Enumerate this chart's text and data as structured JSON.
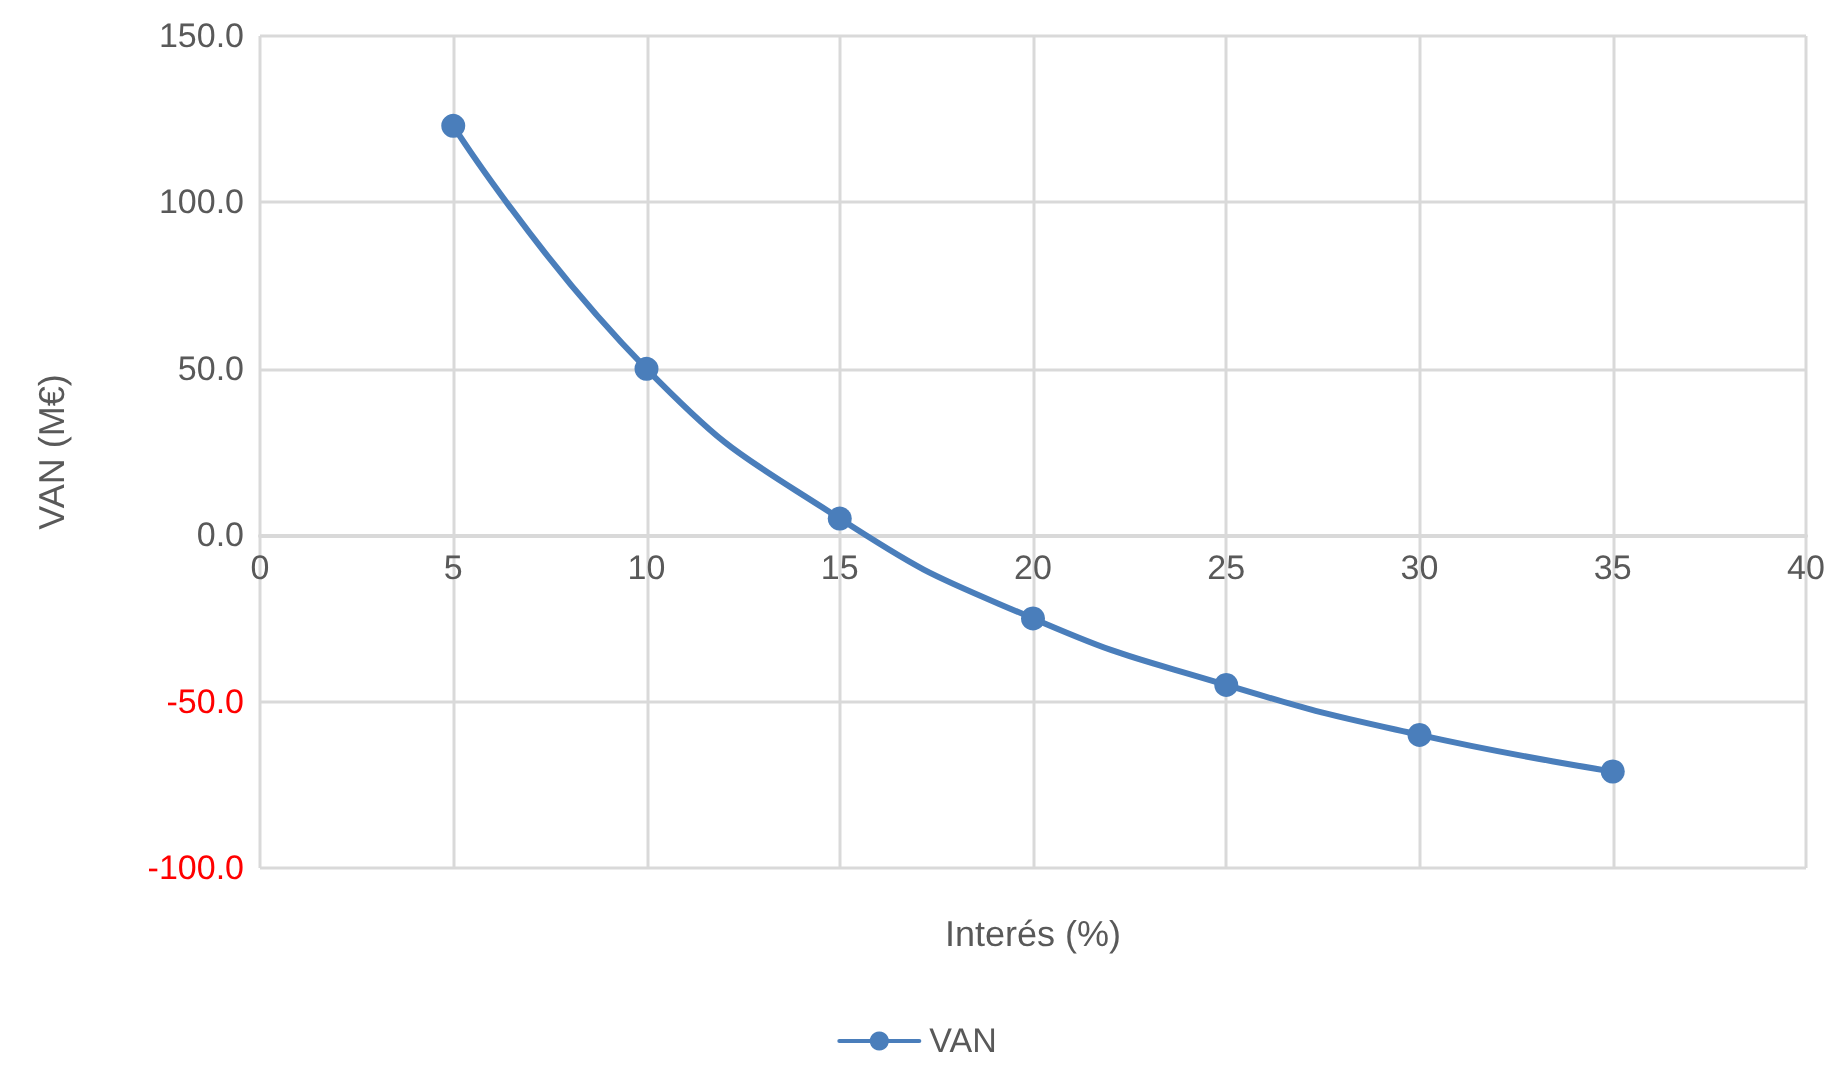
{
  "chart_data": {
    "type": "line",
    "xlabel": "Interés (%)",
    "ylabel": "VAN (M€)",
    "x": [
      5,
      10,
      15,
      20,
      25,
      30,
      35
    ],
    "series": [
      {
        "name": "VAN",
        "color": "#4a7ebb",
        "values": [
          123,
          50,
          5,
          -25,
          -45,
          -60,
          -71
        ]
      }
    ],
    "xlim": [
      0,
      40
    ],
    "xticks": [
      0,
      5,
      10,
      15,
      20,
      25,
      30,
      35,
      40
    ],
    "ylim": [
      -100,
      150
    ],
    "yticks": [
      {
        "value": -100,
        "label": "-100.0"
      },
      {
        "value": -50,
        "label": "-50.0"
      },
      {
        "value": 0,
        "label": "0.0"
      },
      {
        "value": 50,
        "label": "50.0"
      },
      {
        "value": 100,
        "label": "100.0"
      },
      {
        "value": 150,
        "label": "150.0"
      }
    ],
    "grid": true,
    "legend": "bottom",
    "marker": "circle",
    "line_style": "solid"
  }
}
